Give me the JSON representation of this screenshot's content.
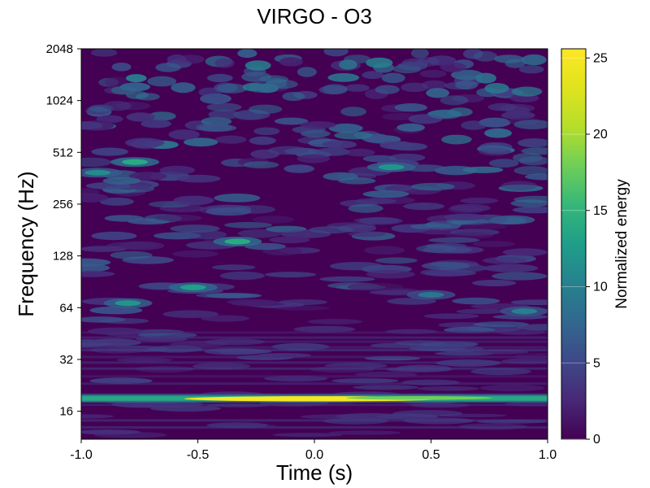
{
  "chart_data": {
    "type": "heatmap",
    "title": "VIRGO - O3",
    "xlabel": "Time (s)",
    "ylabel": "Frequency (Hz)",
    "colorbar_label": "Normalized energy",
    "colormap": "viridis",
    "xlim": [
      -1.0,
      1.0
    ],
    "ylim": [
      11,
      2048
    ],
    "yscale": "log2",
    "x_ticks": [
      "-1.0",
      "-0.5",
      "0.0",
      "0.5",
      "1.0"
    ],
    "y_ticks": [
      "16",
      "32",
      "64",
      "128",
      "256",
      "512",
      "1024",
      "2048"
    ],
    "colorbar_range": [
      0,
      25.6
    ],
    "colorbar_ticks": [
      "0",
      "5",
      "10",
      "15",
      "20",
      "25"
    ],
    "features": [
      {
        "time": 0.0,
        "frequency": 19,
        "energy": 25,
        "shape": "continuous line"
      },
      {
        "time": -0.8,
        "frequency": 68,
        "energy": 12
      },
      {
        "time": -0.52,
        "frequency": 84,
        "energy": 13
      },
      {
        "time": -0.33,
        "frequency": 155,
        "energy": 14
      },
      {
        "time": -0.77,
        "frequency": 450,
        "energy": 14
      },
      {
        "time": -0.93,
        "frequency": 390,
        "energy": 11
      },
      {
        "time": 0.33,
        "frequency": 420,
        "energy": 12
      },
      {
        "time": 0.9,
        "frequency": 61,
        "energy": 10
      },
      {
        "time": 0.5,
        "frequency": 76,
        "energy": 9
      }
    ]
  }
}
